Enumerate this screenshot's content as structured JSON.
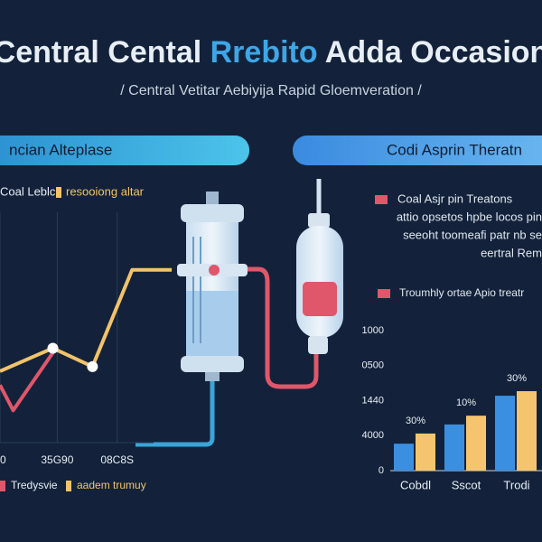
{
  "header": {
    "title_parts": [
      "Central Cental ",
      "Rrebito",
      " Adda Occasion"
    ],
    "subtitle": "/ Central Vetitar Aebiyija Rapid Gloemveration /"
  },
  "panels": [
    {
      "heading": "ncian Alteplase",
      "bottom_legend": [
        "Tredysvie",
        "aadem trumuy"
      ]
    },
    {
      "heading": "Codi Asprin Theratn",
      "notes": [
        "Coal Asjr pin Treatons",
        "attio opsetos hpbe locos pin",
        "seeoht toomeafi patr nb se",
        "eertral Rem"
      ],
      "second_note": "Troumhly ortae Apio treatr"
    }
  ],
  "chart_data": [
    {
      "type": "line",
      "xlim": [
        0,
        200
      ],
      "ylim": [
        0,
        100
      ],
      "xticks": [
        0,
        {
          "value": 65,
          "label": "35G90"
        },
        {
          "value": 133,
          "label": "08C8S"
        }
      ],
      "grid": true,
      "series": [
        {
          "name": "Coal Leblc",
          "color": "#e0566b",
          "x": [
            0,
            15,
            60
          ],
          "values": [
            25,
            14,
            39
          ]
        },
        {
          "name": "resooiong altar",
          "color": "#f2c36b",
          "x": [
            0,
            60,
            105,
            150,
            195
          ],
          "values": [
            31,
            41,
            33,
            75,
            75
          ]
        }
      ]
    },
    {
      "type": "bar",
      "categories": [
        "Cobdl",
        "Sscot",
        "Trodi"
      ],
      "ylim": [
        0,
        4
      ],
      "yticks": [
        {
          "value": 4,
          "label": "1000"
        },
        {
          "value": 3,
          "label": "0500"
        },
        {
          "value": 2,
          "label": "1440"
        },
        {
          "value": 1,
          "label": "4000"
        },
        0
      ],
      "annotations": [
        "30%",
        "10%",
        "30%"
      ],
      "series": [
        {
          "color": "#3b8fe0",
          "values": [
            0.77,
            1.32,
            2.14
          ]
        },
        {
          "color": "#f4c56e",
          "values": [
            1.06,
            1.57,
            2.27
          ]
        }
      ]
    }
  ]
}
